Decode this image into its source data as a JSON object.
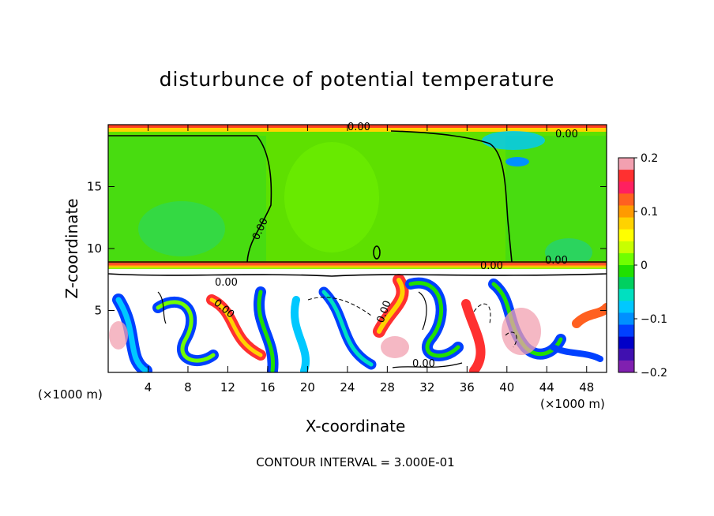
{
  "chart_data": {
    "type": "heatmap",
    "title": "disturbunce of potential temperature",
    "xlabel": "X-coordinate",
    "ylabel": "Z-coordinate",
    "x_unit": "(×1000 m)",
    "y_unit": "(×1000 m)",
    "x_ticks": [
      4,
      8,
      12,
      16,
      20,
      24,
      28,
      32,
      36,
      40,
      44,
      48
    ],
    "y_ticks": [
      5,
      10,
      15
    ],
    "xlim": [
      0,
      50
    ],
    "ylim": [
      0,
      20
    ],
    "colorbar": {
      "ticks": [
        "0.2",
        "0.1",
        "0",
        "−0.1",
        "−0.2"
      ],
      "tick_values": [
        0.2,
        0.1,
        0,
        -0.1,
        -0.2
      ],
      "range": [
        -0.2,
        0.2
      ],
      "colors": [
        "#f2a0b0",
        "#ff3030",
        "#ff2060",
        "#ff6020",
        "#ff9a00",
        "#ffd200",
        "#ffff00",
        "#c8ff00",
        "#70ff00",
        "#20e000",
        "#00d060",
        "#00e0c0",
        "#00c8ff",
        "#0090ff",
        "#0040ff",
        "#0000c8",
        "#4010b0",
        "#8020b0"
      ]
    },
    "contour_labels": [
      "0.00",
      "0.00",
      "0.00",
      "0.00",
      "0.00",
      "0.00",
      "0.00",
      "0.00",
      "0.00"
    ],
    "footer": "CONTOUR INTERVAL = 3.000E-01"
  }
}
